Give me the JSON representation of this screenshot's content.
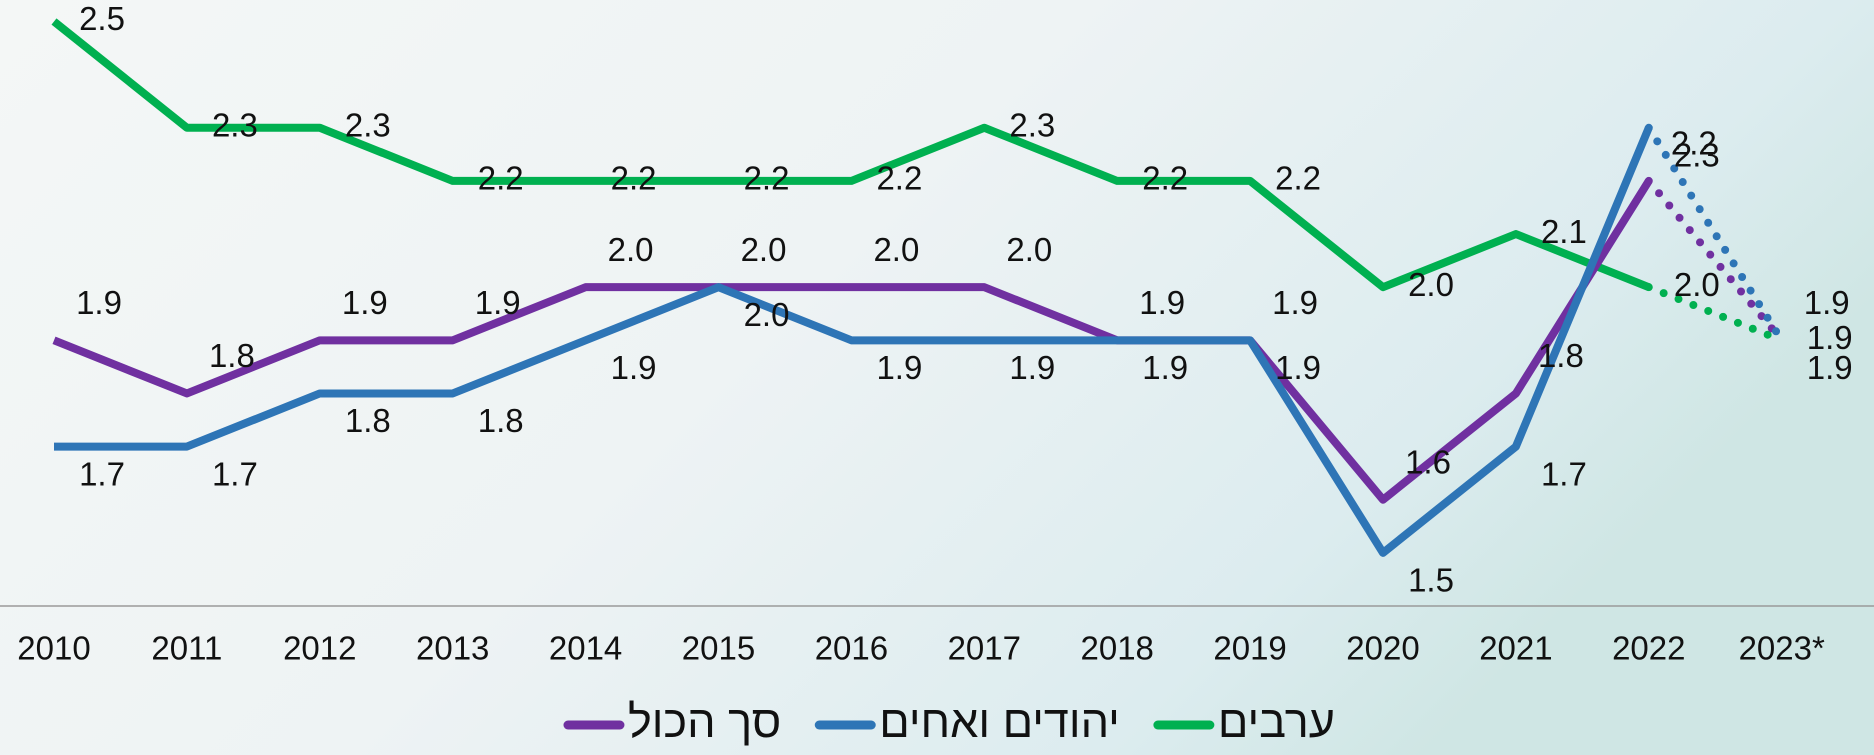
{
  "chart_data": {
    "type": "line",
    "categories": [
      "2010",
      "2011",
      "2012",
      "2013",
      "2014",
      "2015",
      "2016",
      "2017",
      "2018",
      "2019",
      "2020",
      "2021",
      "2022",
      "2023*"
    ],
    "ylim": [
      1.4,
      2.5
    ],
    "series": [
      {
        "name": "ערבים",
        "color": "#00b050",
        "values": [
          2.5,
          2.3,
          2.3,
          2.2,
          2.2,
          2.2,
          2.2,
          2.3,
          2.2,
          2.2,
          2.0,
          2.1,
          2.0,
          1.9
        ],
        "value_labels": [
          "2.5",
          "2.3",
          "2.3",
          "2.2",
          "2.2",
          "2.2",
          "2.2",
          "2.3",
          "2.2",
          "2.2",
          "2.0",
          "2.1",
          "2.0",
          "1.9"
        ]
      },
      {
        "name": "יהודים ואחים",
        "color": "#2e75b6",
        "values": [
          1.7,
          1.7,
          1.8,
          1.8,
          1.9,
          2.0,
          1.9,
          1.9,
          1.9,
          1.9,
          1.5,
          1.7,
          2.3,
          1.9
        ],
        "value_labels": [
          "1.7",
          "1.7",
          "1.8",
          "1.8",
          "1.9",
          "2.0",
          "1.9",
          "1.9",
          "1.9",
          "1.9",
          "1.5",
          "1.7",
          "2.3",
          "1.9"
        ]
      },
      {
        "name": "סך הכול",
        "color": "#7030a0",
        "values": [
          1.9,
          1.8,
          1.9,
          1.9,
          2.0,
          2.0,
          2.0,
          2.0,
          1.9,
          1.9,
          1.6,
          1.8,
          2.2,
          1.9
        ],
        "value_labels": [
          "1.9",
          "1.8",
          "1.9",
          "1.9",
          "2.0",
          "2.0",
          "2.0",
          "2.0",
          "1.9",
          "1.9",
          "1.6",
          "1.8",
          "2.2",
          "1.9"
        ]
      }
    ]
  }
}
